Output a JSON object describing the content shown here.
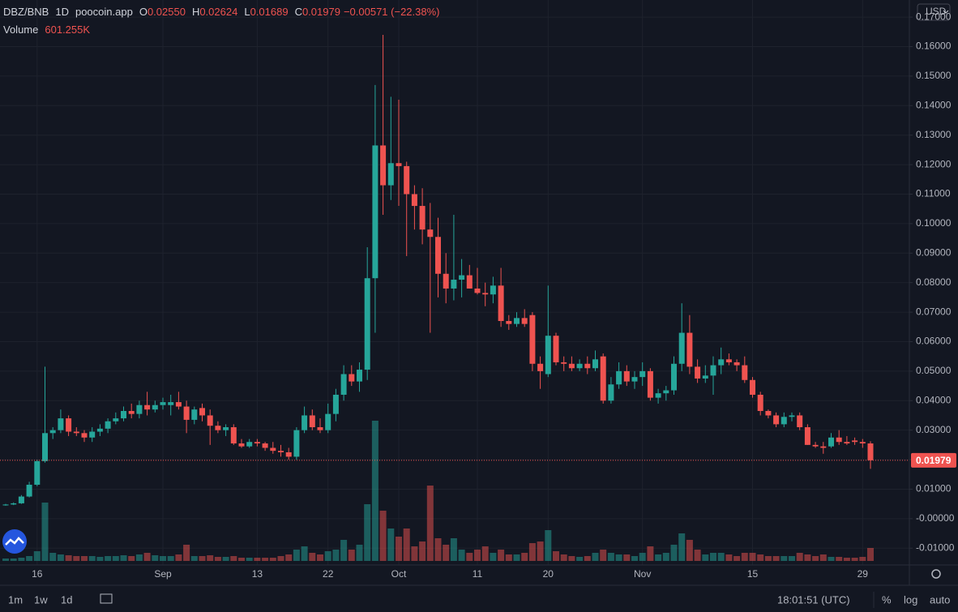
{
  "chart_data": {
    "type": "candlestick",
    "symbol": "DBZ/BNB",
    "interval": "1D",
    "source": "poocoin.app",
    "ohlc_legend": [
      {
        "key": "O",
        "value": "0.02550"
      },
      {
        "key": "H",
        "value": "0.02624"
      },
      {
        "key": "L",
        "value": "0.01689"
      },
      {
        "key": "C",
        "value": "0.01979"
      }
    ],
    "change": "−0.00571 (−22.38%)",
    "volume_title": "Volume",
    "volume_value": "601.255K",
    "price_label": "0.01979",
    "currency": "USD",
    "categories": [
      null,
      null,
      null,
      null,
      "16",
      null,
      null,
      null,
      null,
      null,
      null,
      null,
      null,
      null,
      null,
      null,
      null,
      null,
      null,
      null,
      "Sep",
      null,
      null,
      null,
      null,
      null,
      null,
      null,
      null,
      null,
      null,
      null,
      "13",
      null,
      null,
      null,
      null,
      null,
      null,
      null,
      null,
      "22",
      null,
      null,
      null,
      null,
      null,
      null,
      null,
      null,
      "Oct",
      null,
      null,
      null,
      null,
      null,
      null,
      null,
      null,
      null,
      "11",
      null,
      null,
      null,
      null,
      null,
      null,
      null,
      null,
      "20",
      null,
      null,
      null,
      null,
      null,
      null,
      null,
      null,
      null,
      null,
      null,
      "Nov",
      null,
      null,
      null,
      null,
      null,
      null,
      null,
      null,
      null,
      null,
      null,
      null,
      null,
      "15",
      null,
      null,
      null,
      null,
      null,
      null,
      null,
      null,
      null,
      null,
      null,
      null,
      null,
      "29",
      null
    ],
    "open": [
      0.0045,
      0.0048,
      0.0052,
      0.0075,
      0.0115,
      0.0195,
      0.029,
      0.03,
      0.034,
      0.0295,
      0.029,
      0.0275,
      0.0295,
      0.0305,
      0.033,
      0.034,
      0.0365,
      0.0355,
      0.0385,
      0.037,
      0.0385,
      0.0385,
      0.0395,
      0.038,
      0.0335,
      0.0375,
      0.035,
      0.0315,
      0.03,
      0.031,
      0.0255,
      0.0245,
      0.026,
      0.0255,
      0.024,
      0.023,
      0.0225,
      0.021,
      0.03,
      0.035,
      0.031,
      0.03,
      0.0355,
      0.042,
      0.049,
      0.0465,
      0.0505,
      0.0815,
      0.1265,
      0.113,
      0.1205,
      0.1195,
      0.11,
      0.106,
      0.098,
      0.0955,
      0.083,
      0.078,
      0.081,
      0.0825,
      0.078,
      0.0765,
      0.076,
      0.079,
      0.067,
      0.066,
      0.068,
      0.069,
      0.0525,
      0.049,
      0.062,
      0.053,
      0.0525,
      0.051,
      0.0525,
      0.051,
      0.055,
      0.04,
      0.0455,
      0.05,
      0.0465,
      0.048,
      0.05,
      0.041,
      0.0425,
      0.0435,
      0.0525,
      0.063,
      0.0515,
      0.0475,
      0.0485,
      0.052,
      0.054,
      0.053,
      0.052,
      0.047,
      0.042,
      0.0365,
      0.035,
      0.032,
      0.0345,
      0.035,
      0.031,
      0.025,
      0.0245,
      0.0245,
      0.0275,
      0.026,
      0.0265,
      0.026,
      0.0255
    ],
    "high": [
      0.005,
      0.0055,
      0.008,
      0.0125,
      0.02,
      0.0515,
      0.031,
      0.037,
      0.035,
      0.031,
      0.03,
      0.031,
      0.032,
      0.034,
      0.036,
      0.038,
      0.039,
      0.04,
      0.043,
      0.04,
      0.041,
      0.042,
      0.043,
      0.04,
      0.038,
      0.039,
      0.037,
      0.033,
      0.032,
      0.032,
      0.027,
      0.027,
      0.027,
      0.026,
      0.026,
      0.025,
      0.024,
      0.031,
      0.038,
      0.037,
      0.034,
      0.039,
      0.044,
      0.052,
      0.052,
      0.053,
      0.092,
      0.147,
      0.164,
      0.143,
      0.142,
      0.121,
      0.113,
      0.112,
      0.107,
      0.102,
      0.09,
      0.103,
      0.088,
      0.086,
      0.085,
      0.08,
      0.082,
      0.085,
      0.069,
      0.07,
      0.071,
      0.07,
      0.055,
      0.079,
      0.063,
      0.055,
      0.055,
      0.054,
      0.055,
      0.057,
      0.056,
      0.048,
      0.053,
      0.052,
      0.05,
      0.053,
      0.051,
      0.044,
      0.045,
      0.055,
      0.073,
      0.069,
      0.054,
      0.052,
      0.055,
      0.058,
      0.056,
      0.054,
      0.055,
      0.048,
      0.043,
      0.037,
      0.036,
      0.036,
      0.036,
      0.036,
      0.032,
      0.026,
      0.026,
      0.029,
      0.03,
      0.028,
      0.0275,
      0.027,
      0.02624
    ],
    "low": [
      0.0044,
      0.0046,
      0.005,
      0.0072,
      0.011,
      0.019,
      0.027,
      0.029,
      0.028,
      0.028,
      0.026,
      0.026,
      0.028,
      0.029,
      0.032,
      0.033,
      0.034,
      0.034,
      0.035,
      0.036,
      0.037,
      0.035,
      0.037,
      0.029,
      0.032,
      0.033,
      0.025,
      0.029,
      0.028,
      0.025,
      0.024,
      0.024,
      0.0245,
      0.023,
      0.022,
      0.021,
      0.02,
      0.02,
      0.029,
      0.03,
      0.029,
      0.029,
      0.033,
      0.04,
      0.045,
      0.043,
      0.047,
      0.063,
      0.103,
      0.108,
      0.106,
      0.089,
      0.098,
      0.093,
      0.063,
      0.075,
      0.073,
      0.074,
      0.075,
      0.078,
      0.076,
      0.072,
      0.073,
      0.065,
      0.064,
      0.065,
      0.065,
      0.05,
      0.044,
      0.048,
      0.052,
      0.05,
      0.05,
      0.05,
      0.049,
      0.05,
      0.039,
      0.039,
      0.044,
      0.045,
      0.044,
      0.045,
      0.04,
      0.039,
      0.04,
      0.042,
      0.05,
      0.049,
      0.046,
      0.046,
      0.042,
      0.049,
      0.052,
      0.05,
      0.046,
      0.041,
      0.035,
      0.034,
      0.031,
      0.031,
      0.033,
      0.03,
      0.025,
      0.024,
      0.022,
      0.024,
      0.025,
      0.025,
      0.025,
      0.024,
      0.01689
    ],
    "close": [
      0.0048,
      0.0052,
      0.0075,
      0.0115,
      0.0195,
      0.029,
      0.03,
      0.034,
      0.0295,
      0.029,
      0.0275,
      0.0295,
      0.0305,
      0.033,
      0.034,
      0.0365,
      0.0355,
      0.0385,
      0.037,
      0.0385,
      0.0395,
      0.0395,
      0.038,
      0.0335,
      0.037,
      0.035,
      0.0315,
      0.03,
      0.031,
      0.0255,
      0.0245,
      0.026,
      0.0255,
      0.024,
      0.023,
      0.0225,
      0.021,
      0.03,
      0.035,
      0.031,
      0.03,
      0.0355,
      0.042,
      0.049,
      0.0465,
      0.0505,
      0.0815,
      0.1265,
      0.113,
      0.1205,
      0.1195,
      0.11,
      0.106,
      0.098,
      0.0955,
      0.083,
      0.078,
      0.081,
      0.0825,
      0.078,
      0.0765,
      0.076,
      0.079,
      0.067,
      0.066,
      0.068,
      0.066,
      0.0525,
      0.05,
      0.062,
      0.053,
      0.0525,
      0.051,
      0.0525,
      0.051,
      0.054,
      0.04,
      0.0455,
      0.05,
      0.0465,
      0.048,
      0.05,
      0.041,
      0.0425,
      0.0435,
      0.0525,
      0.063,
      0.0515,
      0.0475,
      0.0485,
      0.052,
      0.054,
      0.053,
      0.052,
      0.047,
      0.042,
      0.0365,
      0.035,
      0.032,
      0.0345,
      0.035,
      0.031,
      0.025,
      0.0245,
      0.024,
      0.0275,
      0.026,
      0.0255,
      0.026,
      0.0255,
      0.01979
    ],
    "volume": [
      113000,
      113000,
      150000,
      226000,
      451000,
      2707000,
      376000,
      301000,
      263000,
      226000,
      226000,
      226000,
      188000,
      226000,
      226000,
      263000,
      226000,
      301000,
      376000,
      263000,
      226000,
      226000,
      301000,
      752000,
      226000,
      226000,
      263000,
      188000,
      188000,
      226000,
      150000,
      150000,
      150000,
      150000,
      150000,
      226000,
      301000,
      526000,
      677000,
      376000,
      301000,
      451000,
      526000,
      978000,
      526000,
      752000,
      2632000,
      6505000,
      2331000,
      1504000,
      1128000,
      1504000,
      677000,
      902000,
      3497000,
      1053000,
      752000,
      1053000,
      526000,
      376000,
      526000,
      677000,
      376000,
      526000,
      301000,
      301000,
      376000,
      827000,
      902000,
      1429000,
      451000,
      301000,
      226000,
      188000,
      226000,
      376000,
      526000,
      376000,
      301000,
      301000,
      226000,
      376000,
      677000,
      301000,
      376000,
      752000,
      1278000,
      978000,
      526000,
      301000,
      376000,
      376000,
      301000,
      226000,
      376000,
      376000,
      301000,
      226000,
      226000,
      226000,
      226000,
      376000,
      301000,
      226000,
      301000,
      188000,
      188000,
      150000,
      150000,
      188000,
      601255
    ],
    "up_color": "#26a69a",
    "down_color": "#ef5350",
    "ylim": [
      -0.0157,
      0.1758
    ],
    "yticks": [
      {
        "value": -0.01,
        "label": "-0.01000"
      },
      {
        "value": 0,
        "label": "-0.00000"
      },
      {
        "value": 0.01,
        "label": "0.01000"
      },
      {
        "value": 0.02,
        "label": "0.02000"
      },
      {
        "value": 0.03,
        "label": "0.03000"
      },
      {
        "value": 0.04,
        "label": "0.04000"
      },
      {
        "value": 0.05,
        "label": "0.05000"
      },
      {
        "value": 0.06,
        "label": "0.06000"
      },
      {
        "value": 0.07,
        "label": "0.07000"
      },
      {
        "value": 0.08,
        "label": "0.08000"
      },
      {
        "value": 0.09,
        "label": "0.09000"
      },
      {
        "value": 0.1,
        "label": "0.10000"
      },
      {
        "value": 0.11,
        "label": "0.11000"
      },
      {
        "value": 0.12,
        "label": "0.12000"
      },
      {
        "value": 0.13,
        "label": "0.13000"
      },
      {
        "value": 0.14,
        "label": "0.14000"
      },
      {
        "value": 0.15,
        "label": "0.15000"
      },
      {
        "value": 0.16,
        "label": "0.16000"
      },
      {
        "value": 0.17,
        "label": "0.17000"
      }
    ],
    "grid": true
  },
  "toolbar": {
    "ranges": [
      "1m",
      "1w",
      "1d"
    ],
    "clock": "18:01:51 (UTC)",
    "options": [
      "%",
      "log",
      "auto"
    ]
  }
}
